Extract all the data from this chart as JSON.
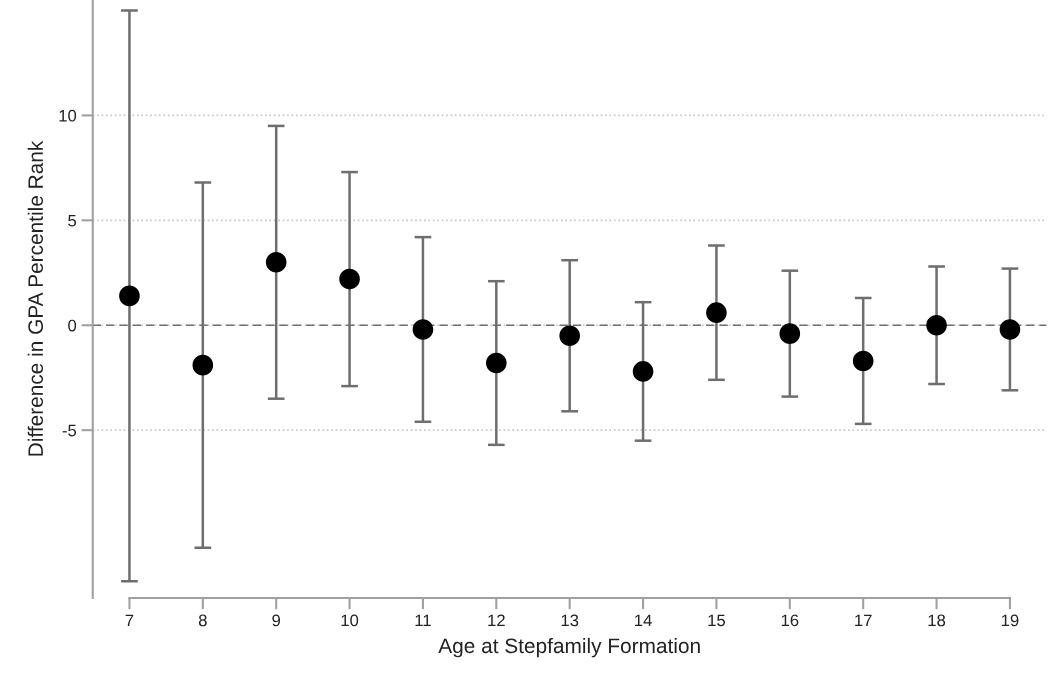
{
  "chart_data": {
    "type": "scatter",
    "xlabel": "Age at Stepfamily Formation",
    "ylabel": "Difference in GPA Percentile Rank",
    "x": [
      7,
      8,
      9,
      10,
      11,
      12,
      13,
      14,
      15,
      16,
      17,
      18,
      19
    ],
    "values": [
      1.4,
      -1.9,
      3.0,
      2.2,
      -0.2,
      -1.8,
      -0.5,
      -2.2,
      0.6,
      -0.4,
      -1.7,
      0.0,
      -0.2
    ],
    "errors": [
      13.6,
      8.7,
      6.5,
      5.1,
      4.4,
      3.9,
      3.6,
      3.3,
      3.2,
      3.0,
      3.0,
      2.8,
      2.9
    ],
    "color": "#000000",
    "marker": "circle",
    "xlim": [
      6.5,
      19.5
    ],
    "xticks": [
      7,
      8,
      9,
      10,
      11,
      12,
      13,
      14,
      15,
      16,
      17,
      18,
      19
    ],
    "ylim": [
      -13,
      15.5
    ],
    "yticks": [
      -5,
      0,
      5,
      10
    ],
    "grid": "y",
    "ref_lines": [
      {
        "axis": "y",
        "value": 0,
        "color": "#707070",
        "line_style": "dashed"
      }
    ]
  }
}
